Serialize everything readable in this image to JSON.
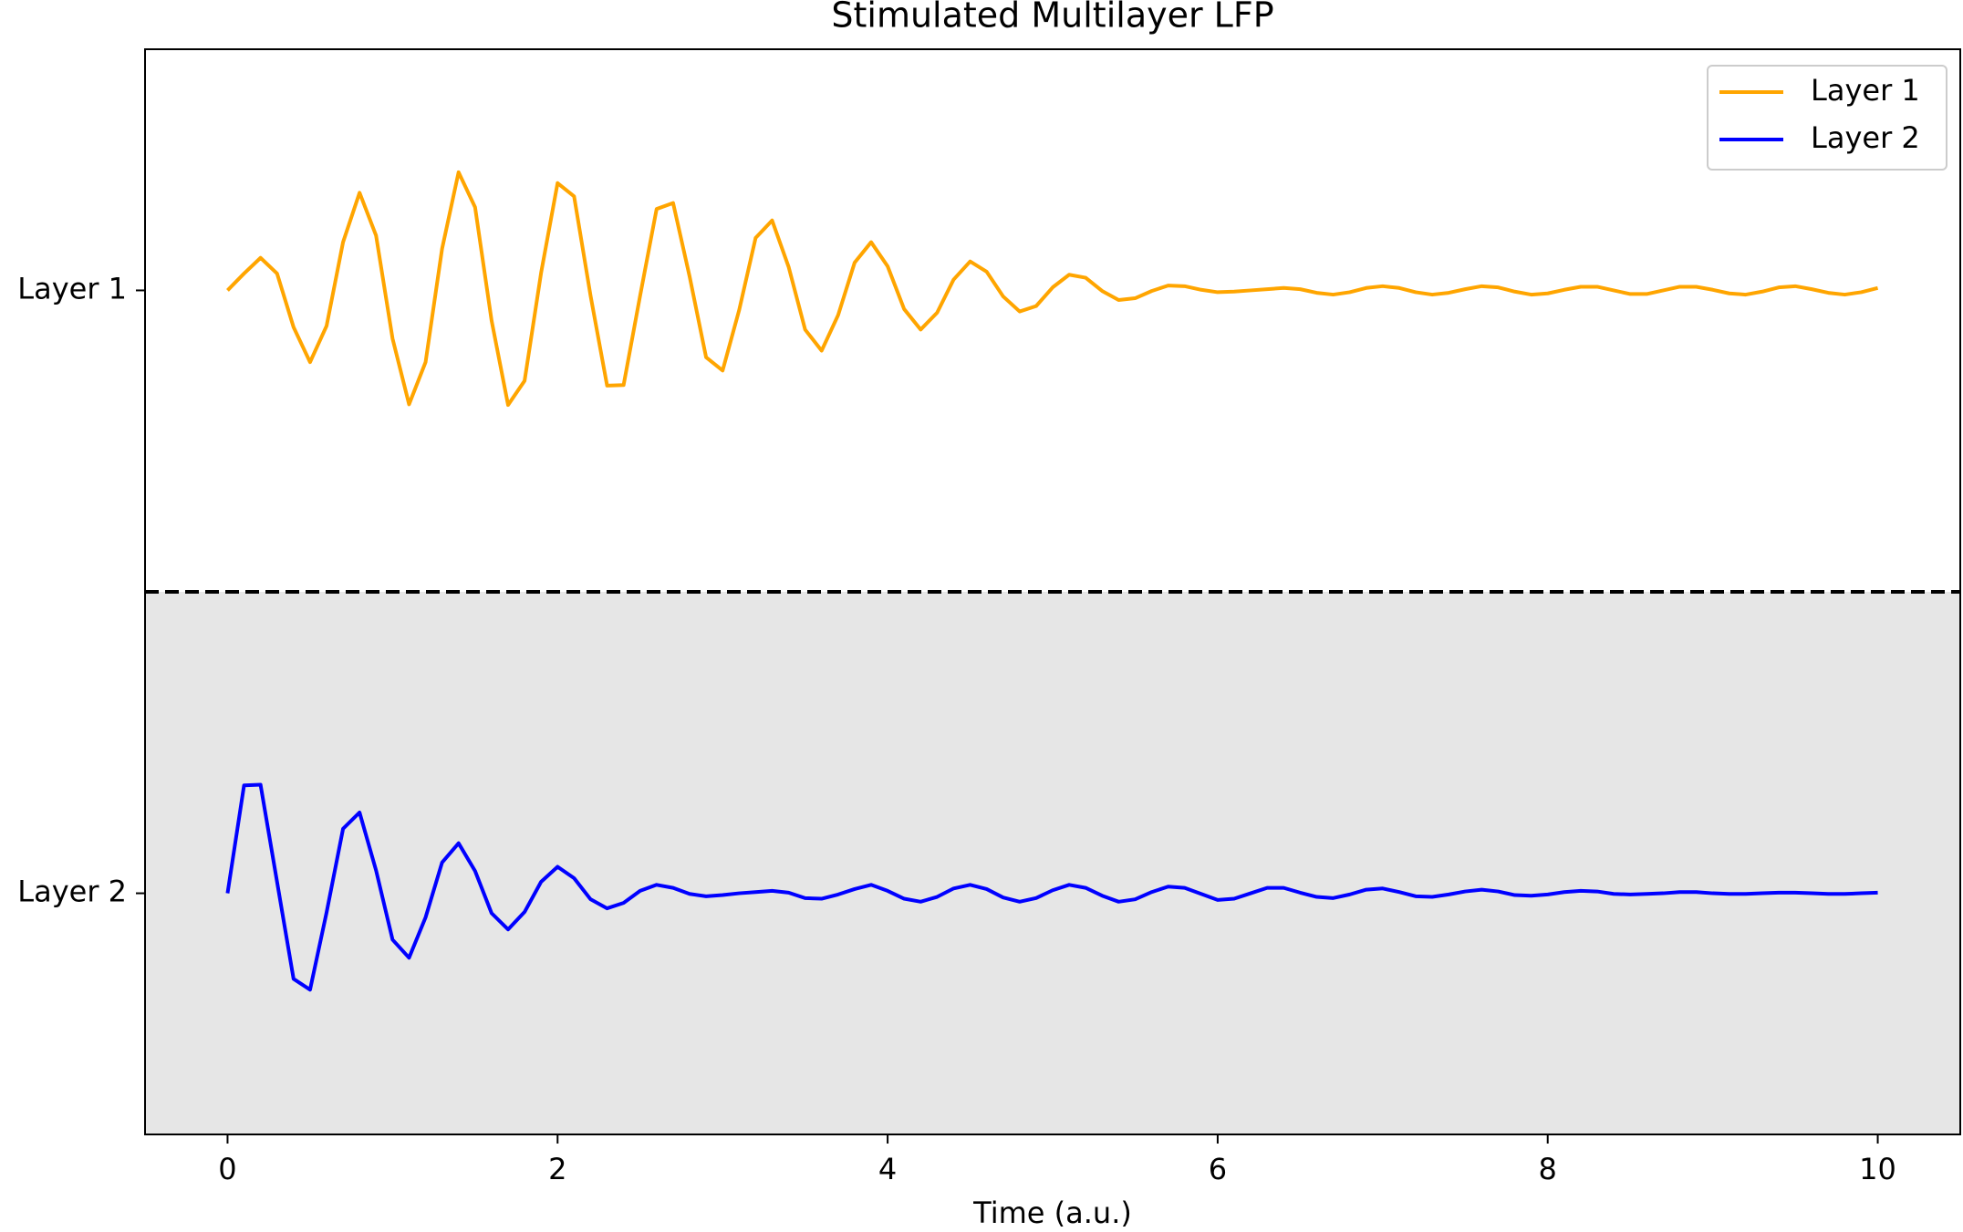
{
  "chart_data": {
    "type": "line",
    "title": "Stimulated Multilayer LFP",
    "x_label": "Time (a.u.)",
    "x": [
      0,
      0.1,
      0.2,
      0.3,
      0.4,
      0.5,
      0.6,
      0.7,
      0.8,
      0.9,
      1,
      1.1,
      1.2,
      1.3,
      1.4,
      1.5,
      1.6,
      1.7,
      1.8,
      1.9,
      2,
      2.1,
      2.2,
      2.3,
      2.4,
      2.5,
      2.6,
      2.7,
      2.8,
      2.9,
      3,
      3.1,
      3.2,
      3.3,
      3.4,
      3.5,
      3.6,
      3.7,
      3.8,
      3.9,
      4,
      4.1,
      4.2,
      4.3,
      4.4,
      4.5,
      4.6,
      4.7,
      4.8,
      4.9,
      5,
      5.1,
      5.2,
      5.3,
      5.4,
      5.5,
      5.6,
      5.7,
      5.8,
      5.9,
      6,
      6.1,
      6.2,
      6.3,
      6.4,
      6.5,
      6.6,
      6.7,
      6.8,
      6.9,
      7,
      7.1,
      7.2,
      7.3,
      7.4,
      7.5,
      7.6,
      7.7,
      7.8,
      7.9,
      8,
      8.1,
      8.2,
      8.3,
      8.4,
      8.5,
      8.6,
      8.7,
      8.8,
      8.9,
      9,
      9.1,
      9.2,
      9.3,
      9.4,
      9.5,
      9.6,
      9.7,
      9.8,
      9.9,
      10
    ],
    "series": [
      {
        "name": "Layer 1",
        "color": "#ffa500",
        "values": [
          1,
          1.028,
          1.054,
          1.028,
          0.939,
          0.881,
          0.941,
          1.08,
          1.162,
          1.091,
          0.92,
          0.811,
          0.881,
          1.069,
          1.196,
          1.138,
          0.95,
          0.81,
          0.85,
          1.029,
          1.178,
          1.156,
          0.991,
          0.842,
          0.843,
          0.991,
          1.135,
          1.145,
          1.023,
          0.889,
          0.867,
          0.967,
          1.087,
          1.116,
          1.039,
          0.935,
          0.9,
          0.959,
          1.046,
          1.08,
          1.04,
          0.969,
          0.935,
          0.963,
          1.018,
          1.048,
          1.031,
          0.99,
          0.965,
          0.974,
          1.005,
          1.026,
          1.021,
          0.999,
          0.984,
          0.987,
          0.999,
          1.008,
          1.007,
          1.001,
          0.997,
          0.998,
          1,
          1.002,
          1.004,
          1.002,
          0.996,
          0.993,
          0.997,
          1.004,
          1.007,
          1.004,
          0.997,
          0.993,
          0.996,
          1.002,
          1.007,
          1.005,
          0.998,
          0.993,
          0.995,
          1.001,
          1.006,
          1.006,
          1,
          0.994,
          0.994,
          1,
          1.006,
          1.006,
          1.001,
          0.995,
          0.993,
          0.998,
          1.005,
          1.007,
          1.002,
          0.996,
          0.993,
          0.997,
          1.004
        ]
      },
      {
        "name": "Layer 2",
        "color": "#0000ff",
        "values": [
          0,
          0.179,
          0.18,
          0.019,
          -0.142,
          -0.16,
          -0.032,
          0.107,
          0.134,
          0.038,
          -0.077,
          -0.107,
          -0.04,
          0.051,
          0.083,
          0.037,
          -0.033,
          -0.06,
          -0.031,
          0.019,
          0.044,
          0.025,
          -0.01,
          -0.025,
          -0.016,
          0.004,
          0.014,
          0.009,
          -0.001,
          -0.005,
          -0.003,
          0,
          0.002,
          0.004,
          0.001,
          -0.008,
          -0.009,
          -0.002,
          0.007,
          0.014,
          0.004,
          -0.009,
          -0.014,
          -0.006,
          0.008,
          0.014,
          0.007,
          -0.007,
          -0.014,
          -0.008,
          0.005,
          0.014,
          0.009,
          -0.004,
          -0.014,
          -0.01,
          0.002,
          0.011,
          0.009,
          -0.001,
          -0.011,
          -0.009,
          0,
          0.009,
          0.009,
          0.001,
          -0.006,
          -0.008,
          -0.002,
          0.006,
          0.008,
          0.002,
          -0.005,
          -0.006,
          -0.002,
          0.003,
          0.006,
          0.003,
          -0.003,
          -0.004,
          -0.002,
          0.002,
          0.004,
          0.003,
          -0.001,
          -0.002,
          -0.001,
          0,
          0.002,
          0.002,
          0,
          -0.001,
          -0.001,
          0,
          0.001,
          0.001,
          0,
          -0.001,
          -0.001,
          0,
          0.001
        ]
      }
    ],
    "xlim": [
      -0.5,
      10.5
    ],
    "ylim": [
      -0.4,
      1.4
    ],
    "xticks": [
      0,
      2,
      4,
      6,
      8,
      10
    ],
    "yticks": [
      {
        "value": 1,
        "label": "Layer 1"
      },
      {
        "value": 0,
        "label": "Layer 2"
      }
    ],
    "divider": 0.5,
    "shade_color": "#e6e6e6",
    "legend": "upper right",
    "grid": false
  }
}
